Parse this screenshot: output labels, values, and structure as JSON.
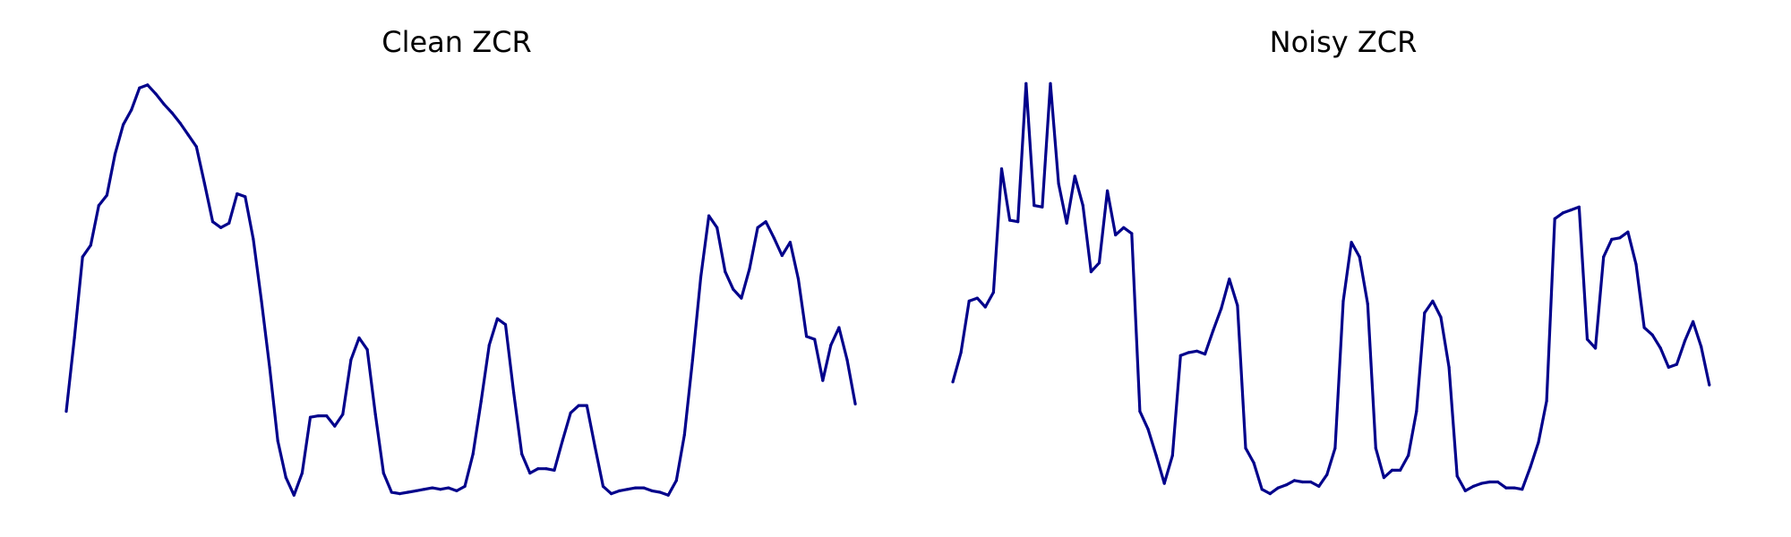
{
  "line_color": "#00008B",
  "chart_data": [
    {
      "type": "line",
      "title": "Clean ZCR",
      "axes_visible": false,
      "grid": false,
      "xlim": [
        0,
        96
      ],
      "ylim": [
        0.04,
        0.32
      ],
      "series": [
        {
          "values": [
            0.095,
            0.145,
            0.2,
            0.208,
            0.235,
            0.242,
            0.27,
            0.29,
            0.3,
            0.315,
            0.317,
            0.311,
            0.304,
            0.298,
            0.291,
            0.283,
            0.275,
            0.25,
            0.224,
            0.22,
            0.223,
            0.243,
            0.241,
            0.212,
            0.17,
            0.125,
            0.075,
            0.05,
            0.038,
            0.053,
            0.091,
            0.092,
            0.092,
            0.085,
            0.093,
            0.13,
            0.145,
            0.137,
            0.093,
            0.053,
            0.04,
            0.039,
            0.04,
            0.041,
            0.042,
            0.043,
            0.042,
            0.043,
            0.041,
            0.044,
            0.066,
            0.102,
            0.14,
            0.158,
            0.154,
            0.108,
            0.066,
            0.053,
            0.056,
            0.056,
            0.055,
            0.075,
            0.094,
            0.099,
            0.099,
            0.071,
            0.044,
            0.039,
            0.041,
            0.042,
            0.043,
            0.043,
            0.041,
            0.04,
            0.038,
            0.048,
            0.079,
            0.13,
            0.186,
            0.228,
            0.22,
            0.19,
            0.178,
            0.172,
            0.192,
            0.22,
            0.224,
            0.213,
            0.201,
            0.21,
            0.185,
            0.146,
            0.144,
            0.116,
            0.14,
            0.152,
            0.13,
            0.1
          ]
        }
      ]
    },
    {
      "type": "line",
      "title": "Noisy ZCR",
      "axes_visible": false,
      "grid": false,
      "xlim": [
        0,
        96
      ],
      "ylim": [
        0.04,
        0.32
      ],
      "series": [
        {
          "values": [
            0.115,
            0.135,
            0.17,
            0.172,
            0.166,
            0.176,
            0.26,
            0.225,
            0.224,
            0.318,
            0.235,
            0.234,
            0.318,
            0.25,
            0.223,
            0.255,
            0.235,
            0.19,
            0.196,
            0.245,
            0.215,
            0.22,
            0.216,
            0.095,
            0.083,
            0.065,
            0.046,
            0.065,
            0.133,
            0.135,
            0.136,
            0.134,
            0.15,
            0.165,
            0.185,
            0.167,
            0.07,
            0.06,
            0.042,
            0.039,
            0.043,
            0.045,
            0.048,
            0.047,
            0.047,
            0.044,
            0.052,
            0.07,
            0.17,
            0.21,
            0.2,
            0.168,
            0.07,
            0.05,
            0.055,
            0.055,
            0.065,
            0.095,
            0.162,
            0.17,
            0.159,
            0.125,
            0.051,
            0.041,
            0.044,
            0.046,
            0.047,
            0.047,
            0.043,
            0.043,
            0.042,
            0.057,
            0.074,
            0.102,
            0.226,
            0.23,
            0.232,
            0.234,
            0.144,
            0.138,
            0.2,
            0.212,
            0.213,
            0.217,
            0.195,
            0.152,
            0.147,
            0.138,
            0.125,
            0.127,
            0.143,
            0.156,
            0.139,
            0.113
          ]
        }
      ]
    }
  ]
}
